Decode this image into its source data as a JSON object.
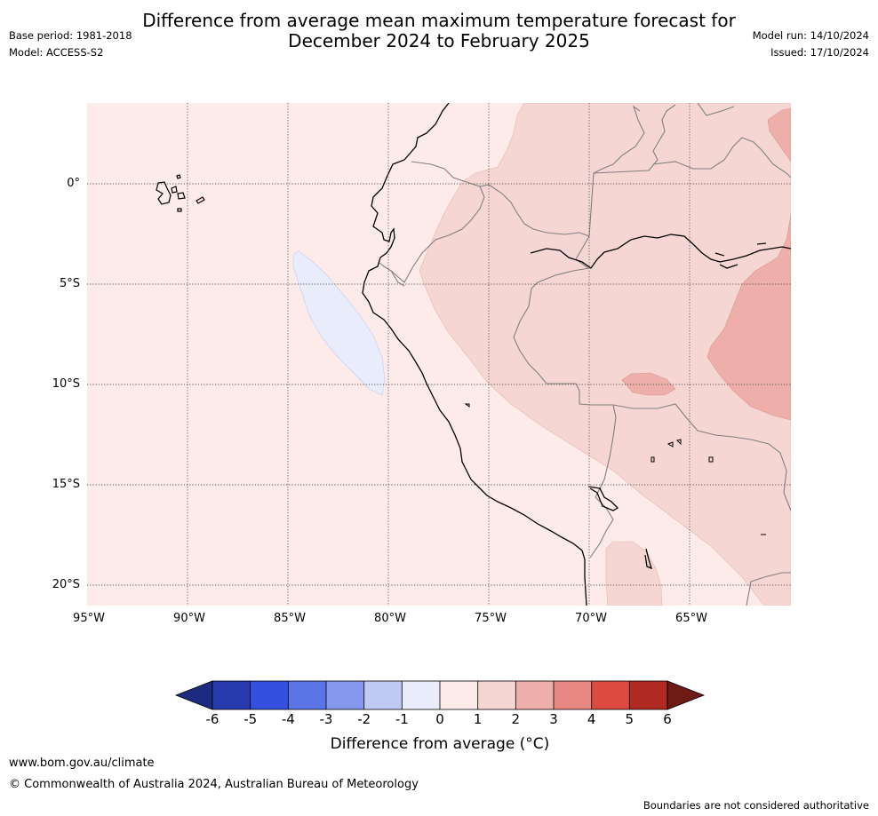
{
  "header": {
    "title_line1": "Difference from average mean maximum temperature forecast for",
    "title_line2": "December 2024 to February 2025",
    "base_period": "Base period: 1981-2018",
    "model": "Model: ACCESS-S2",
    "model_run": "Model run: 14/10/2024",
    "issued": "Issued: 17/10/2024"
  },
  "map": {
    "lat_labels": [
      "0°",
      "5°S",
      "10°S",
      "15°S",
      "20°S"
    ],
    "lon_labels": [
      "95°W",
      "90°W",
      "85°W",
      "80°W",
      "75°W",
      "70°W",
      "65°W"
    ],
    "colors": {
      "0to1": "#fcebe9",
      "1to2": "#f6d6d3",
      "2to3": "#eeaea9",
      "m1to0": "#e9ecfb",
      "land_border": "#808080",
      "coast": "#000000"
    }
  },
  "colorbar": {
    "ticks": [
      "-6",
      "-5",
      "-4",
      "-3",
      "-2",
      "-1",
      "0",
      "1",
      "2",
      "3",
      "4",
      "5",
      "6"
    ],
    "colors": [
      "#1c2a80",
      "#263bb0",
      "#3350e0",
      "#5b74e6",
      "#8597ea",
      "#c0c8f4",
      "#e9ecfb",
      "#fcebe9",
      "#f6d6d3",
      "#eeaea9",
      "#e8877f",
      "#dc4a40",
      "#b02a22",
      "#6e1a15"
    ],
    "title": "Difference from average (°C)"
  },
  "footer": {
    "url": "www.bom.gov.au/climate",
    "copyright": "© Commonwealth of Australia 2024, Australian Bureau of Meteorology",
    "disclaimer": "Boundaries are not considered authoritative"
  }
}
